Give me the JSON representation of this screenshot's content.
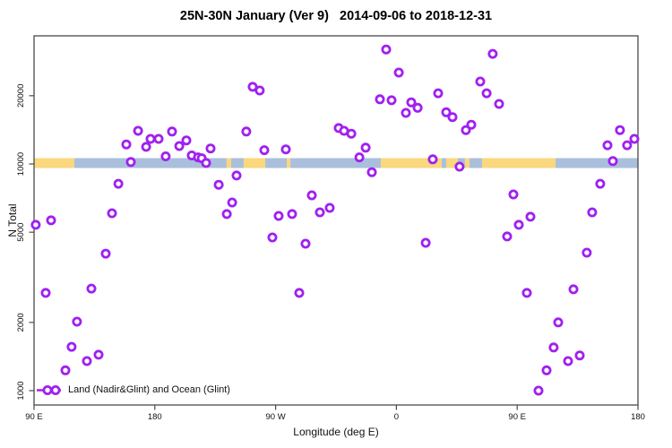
{
  "title": "25N-30N January (Ver 9)   2014-09-06 to 2018-12-31",
  "legend": {
    "label": "Land (Nadir&Glint) and Ocean (Glint)"
  },
  "chart_data": {
    "type": "scatter",
    "title": "25N-30N January (Ver 9)   2014-09-06 to 2018-12-31",
    "xlabel": "Longitude (deg E)",
    "ylabel": "N Total",
    "series_label": "Land (Nadir&Glint) and Ocean (Glint)",
    "marker_color": "#A020F0",
    "grid": "off",
    "legend_position": "bottom-left",
    "x_axis": {
      "min": 90,
      "max": 540,
      "note": "longitude wraps eastward: 90E to 180 to 90W to 0 to 90E to 180",
      "ticks": [
        {
          "value": 90,
          "label": "90 E"
        },
        {
          "value": 180,
          "label": "180"
        },
        {
          "value": 270,
          "label": "90 W"
        },
        {
          "value": 360,
          "label": "0"
        },
        {
          "value": 450,
          "label": "90 E"
        },
        {
          "value": 540,
          "label": "180"
        }
      ]
    },
    "y_axis": {
      "scale": "log",
      "min": 870,
      "max": 36000,
      "ticks": [
        1000,
        2000,
        5000,
        10000,
        20000
      ]
    },
    "band": {
      "center_value": 10000,
      "land_color": "#FBD77D",
      "ocean_color": "#A9BFDC",
      "segments": [
        {
          "from": 90,
          "to": 120,
          "type": "land"
        },
        {
          "from": 120,
          "to": 233.5,
          "type": "ocean"
        },
        {
          "from": 233.5,
          "to": 236.9,
          "type": "land"
        },
        {
          "from": 236.9,
          "to": 246.2,
          "type": "ocean"
        },
        {
          "from": 246.2,
          "to": 262.3,
          "type": "land"
        },
        {
          "from": 262.3,
          "to": 278.3,
          "type": "ocean"
        },
        {
          "from": 278.3,
          "to": 281.0,
          "type": "land"
        },
        {
          "from": 281.0,
          "to": 348.4,
          "type": "ocean"
        },
        {
          "from": 348.4,
          "to": 393.8,
          "type": "land"
        },
        {
          "from": 393.8,
          "to": 397.1,
          "type": "ocean"
        },
        {
          "from": 397.1,
          "to": 405.8,
          "type": "land"
        },
        {
          "from": 405.8,
          "to": 411.1,
          "type": "ocean"
        },
        {
          "from": 411.1,
          "to": 414.5,
          "type": "land"
        },
        {
          "from": 414.5,
          "to": 423.8,
          "type": "ocean"
        },
        {
          "from": 423.8,
          "to": 478.6,
          "type": "land"
        },
        {
          "from": 478.6,
          "to": 540,
          "type": "ocean"
        }
      ]
    },
    "points": [
      [
        167.5,
        14000
      ],
      [
        192.8,
        13900
      ],
      [
        158.8,
        12200
      ],
      [
        173.5,
        11900
      ],
      [
        176.8,
        12900
      ],
      [
        182.8,
        12900
      ],
      [
        198.2,
        12000
      ],
      [
        203.5,
        12700
      ],
      [
        207.5,
        10900
      ],
      [
        212.2,
        10700
      ],
      [
        214.9,
        10600
      ],
      [
        218.2,
        10100
      ],
      [
        221.5,
        11700
      ],
      [
        162.1,
        10200
      ],
      [
        188.1,
        10800
      ],
      [
        152.8,
        8180
      ],
      [
        227.6,
        8100
      ],
      [
        237.6,
        6760
      ],
      [
        233.6,
        6010
      ],
      [
        148.1,
        6060
      ],
      [
        102.7,
        5640
      ],
      [
        91.3,
        5390
      ],
      [
        352.4,
        32000
      ],
      [
        361.8,
        25300
      ],
      [
        252.9,
        21900
      ],
      [
        258.2,
        21100
      ],
      [
        347.7,
        19300
      ],
      [
        356.4,
        19100
      ],
      [
        371.1,
        18700
      ],
      [
        375.8,
        17700
      ],
      [
        367.1,
        16800
      ],
      [
        317.0,
        14400
      ],
      [
        321.0,
        14000
      ],
      [
        326.4,
        13600
      ],
      [
        248.2,
        13900
      ],
      [
        337.1,
        11800
      ],
      [
        261.6,
        11500
      ],
      [
        277.6,
        11600
      ],
      [
        332.4,
        10700
      ],
      [
        341.7,
        9200
      ],
      [
        240.9,
        8890
      ],
      [
        297.0,
        7270
      ],
      [
        303.0,
        6120
      ],
      [
        310.3,
        6400
      ],
      [
        272.3,
        5900
      ],
      [
        282.3,
        6010
      ],
      [
        431.8,
        30600
      ],
      [
        422.5,
        23100
      ],
      [
        427.2,
        20500
      ],
      [
        436.5,
        18400
      ],
      [
        391.1,
        20500
      ],
      [
        397.1,
        16900
      ],
      [
        401.8,
        16100
      ],
      [
        411.8,
        14100
      ],
      [
        415.8,
        14900
      ],
      [
        526.6,
        14100
      ],
      [
        517.3,
        12100
      ],
      [
        531.9,
        12100
      ],
      [
        537.3,
        12900
      ],
      [
        521.3,
        10300
      ],
      [
        407.1,
        9730
      ],
      [
        511.9,
        8180
      ],
      [
        447.2,
        7340
      ],
      [
        459.9,
        5850
      ],
      [
        505.9,
        6120
      ],
      [
        451.2,
        5390
      ],
      [
        387.1,
        10480
      ],
      [
        143.4,
        4020
      ],
      [
        98.7,
        2700
      ],
      [
        132.7,
        2820
      ],
      [
        122.0,
        2015
      ],
      [
        118.0,
        1560
      ],
      [
        138.1,
        1440
      ],
      [
        129.4,
        1350
      ],
      [
        113.4,
        1230
      ],
      [
        267.6,
        4740
      ],
      [
        292.3,
        4450
      ],
      [
        287.6,
        2700
      ],
      [
        381.8,
        4490
      ],
      [
        442.5,
        4790
      ],
      [
        501.9,
        4060
      ],
      [
        457.2,
        2700
      ],
      [
        491.9,
        2800
      ],
      [
        480.6,
        2000
      ],
      [
        477.2,
        1550
      ],
      [
        496.6,
        1430
      ],
      [
        487.9,
        1350
      ],
      [
        471.9,
        1230
      ],
      [
        465.9,
        1000
      ]
    ]
  }
}
